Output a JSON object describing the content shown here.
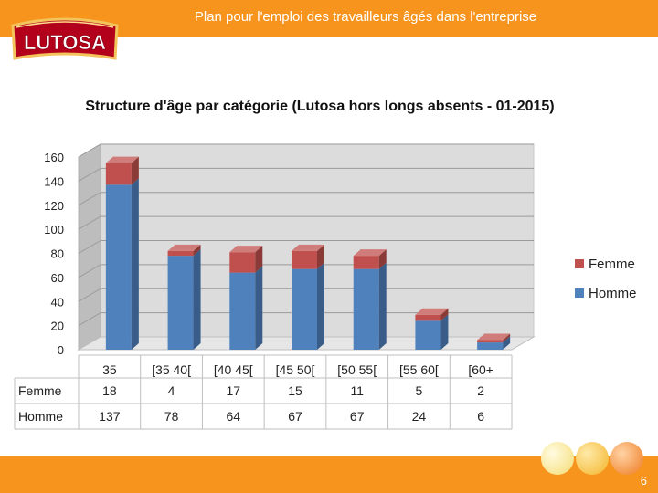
{
  "header": {
    "title": "Plan pour l'emploi des travailleurs âgés dans l'entreprise"
  },
  "logo": {
    "text": "LUTOSA"
  },
  "footer": {
    "page_number": "6"
  },
  "colors": {
    "accent": "#f7941d",
    "homme": "#4f81bd",
    "femme": "#c0504d"
  },
  "chart_data": {
    "type": "bar",
    "stacked": true,
    "title": "Structure d'âge par catégorie (Lutosa hors longs absents - 01-2015)",
    "categories": [
      "35",
      "[35 40[",
      "[40 45[",
      "[45 50[",
      "[50 55[",
      "[55 60[",
      "[60+"
    ],
    "series": [
      {
        "name": "Homme",
        "values": [
          137,
          78,
          64,
          67,
          67,
          24,
          6
        ]
      },
      {
        "name": "Femme",
        "values": [
          18,
          4,
          17,
          15,
          11,
          5,
          2
        ]
      }
    ],
    "ylim": [
      0,
      160
    ],
    "yticks": [
      0,
      20,
      40,
      60,
      80,
      100,
      120,
      140,
      160
    ],
    "legend": "right",
    "legend_order": [
      "Femme",
      "Homme"
    ],
    "table_rows": [
      "Femme",
      "Homme"
    ]
  }
}
